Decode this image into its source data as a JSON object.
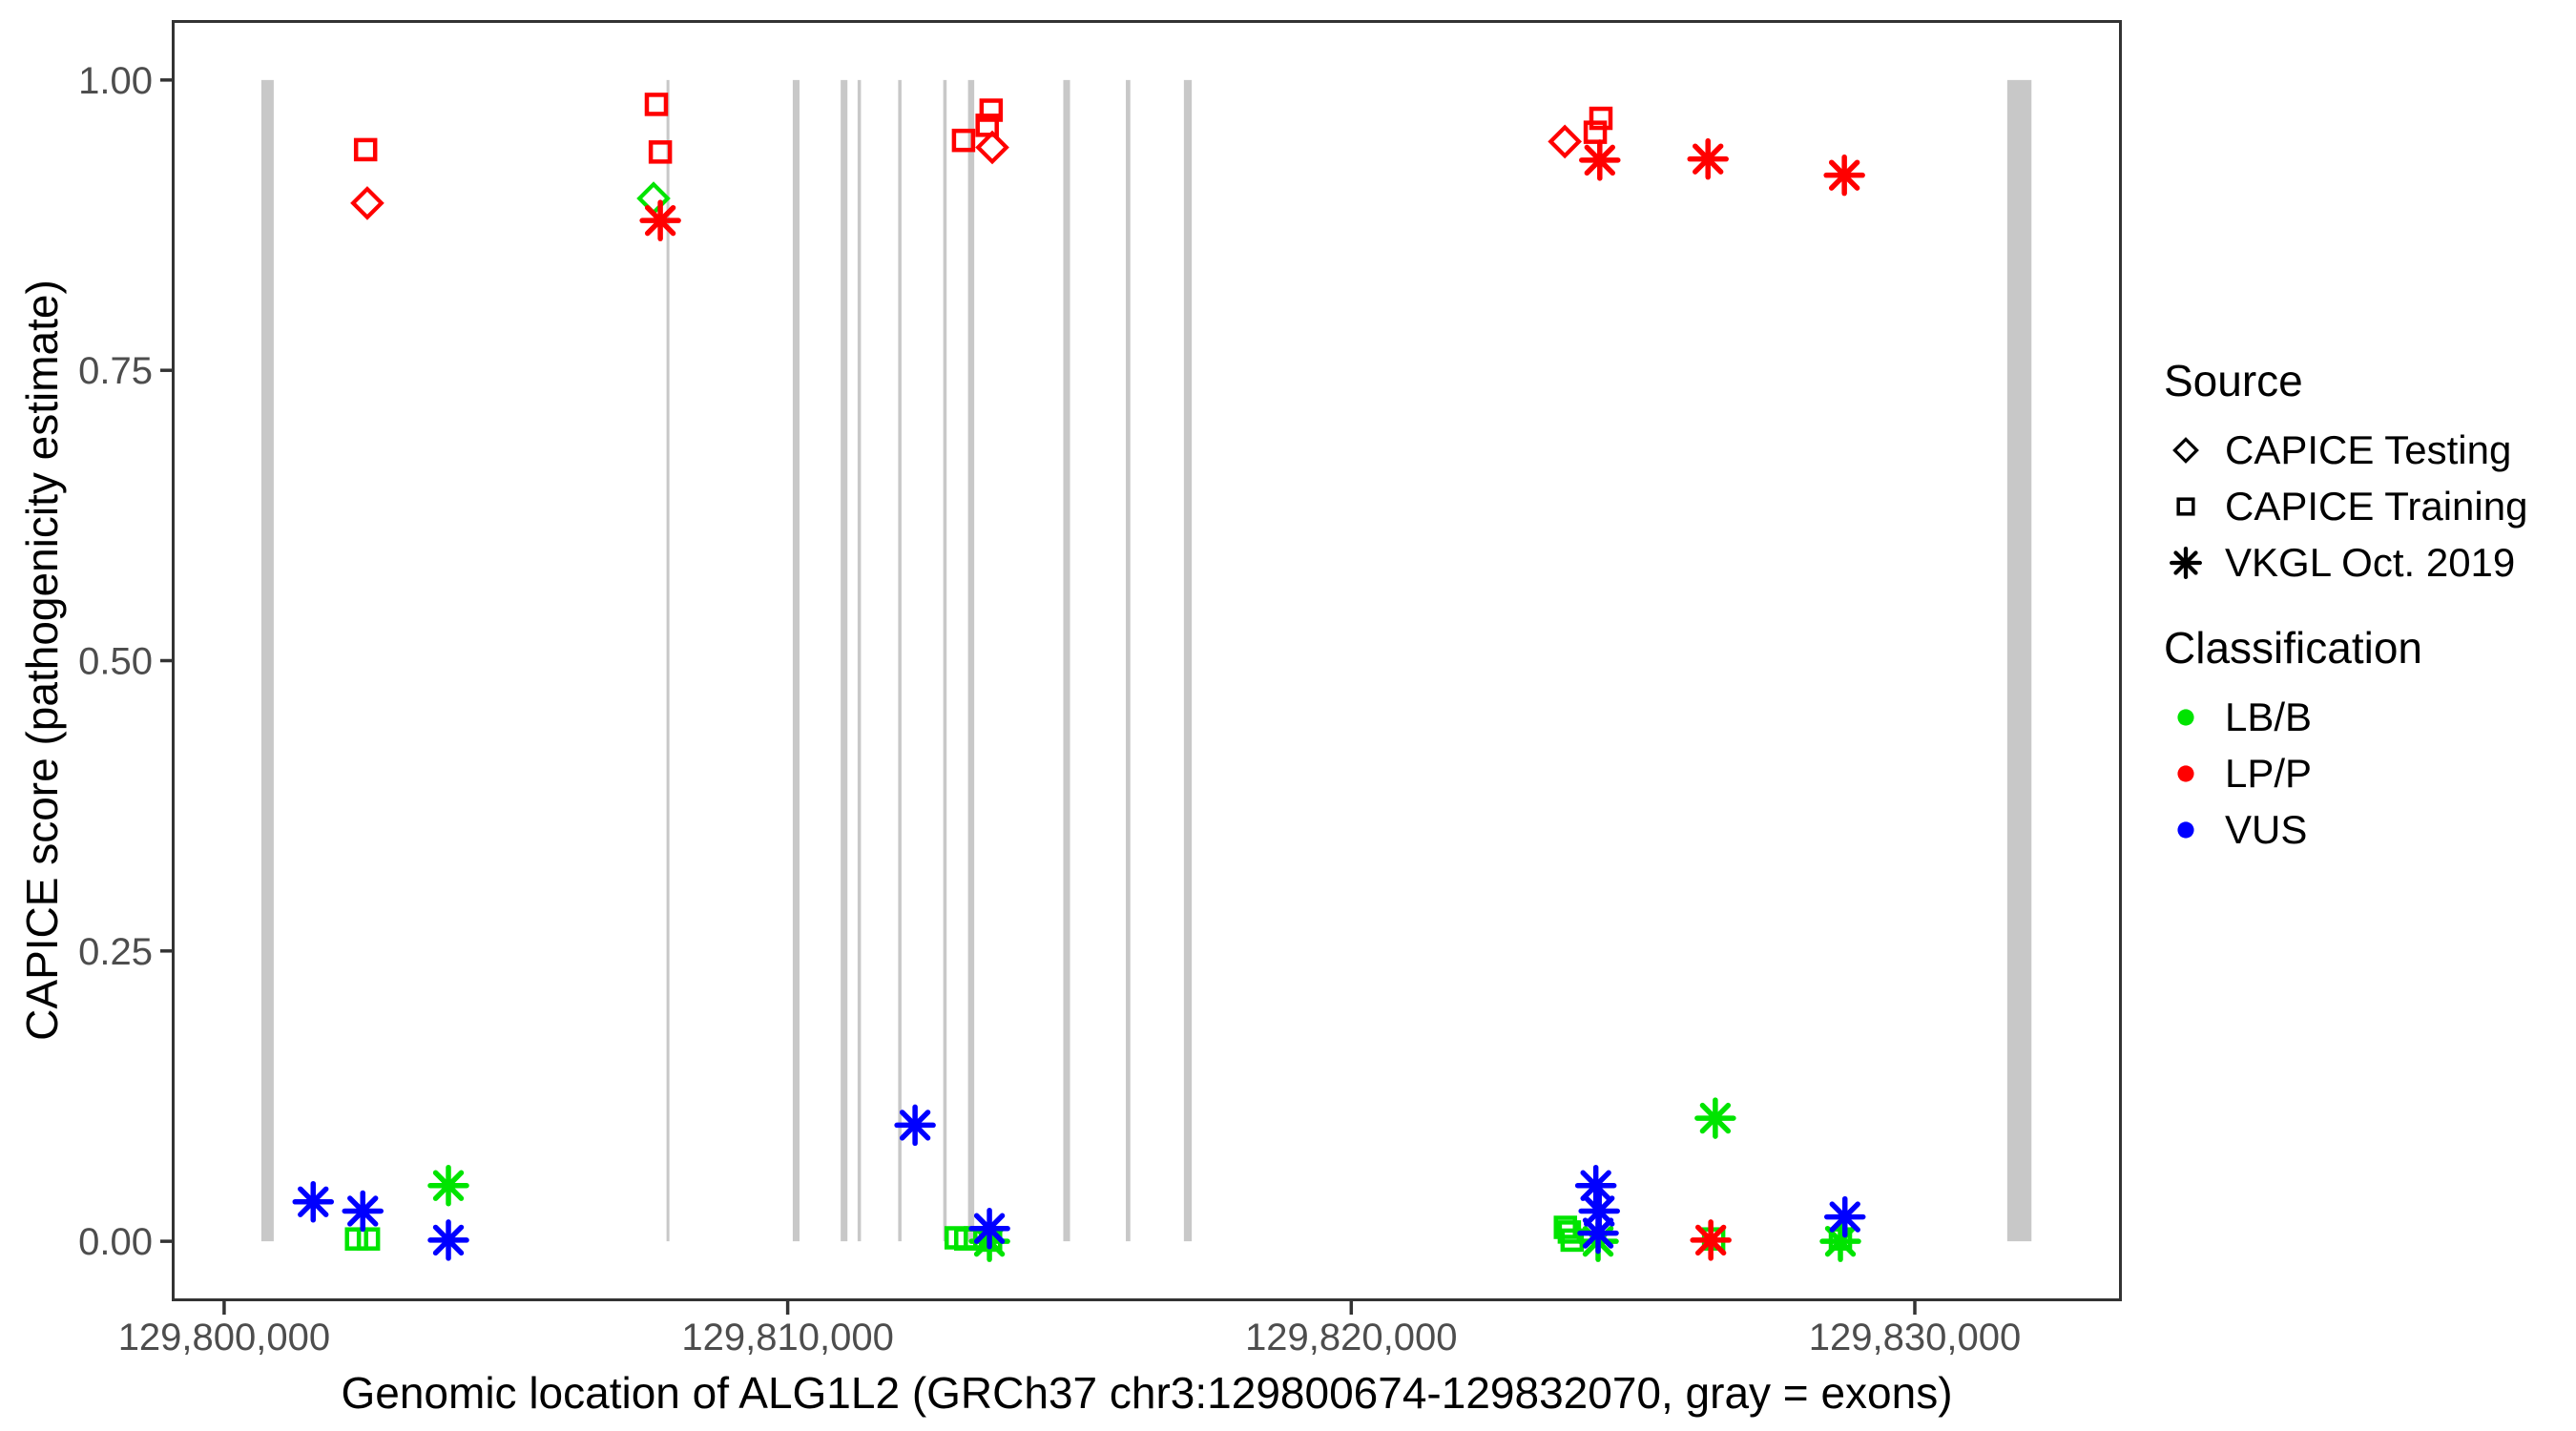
{
  "figure": {
    "x_axis_title": "Genomic location of ALG1L2 (GRCh37 chr3:129800674-129832070, gray = exons)",
    "y_axis_title": "CAPICE score (pathogenicity estimate)"
  },
  "legend": {
    "source": {
      "title": "Source",
      "items": [
        {
          "label": "CAPICE Testing",
          "symbol": "diamond",
          "color": "#000000"
        },
        {
          "label": "CAPICE Training",
          "symbol": "square",
          "color": "#000000"
        },
        {
          "label": "VKGL Oct. 2019",
          "symbol": "asterisk",
          "color": "#000000"
        }
      ]
    },
    "classification": {
      "title": "Classification",
      "items": [
        {
          "label": "LB/B",
          "symbol": "dot",
          "color": "#00e400"
        },
        {
          "label": "LP/P",
          "symbol": "dot",
          "color": "#ff0000"
        },
        {
          "label": "VUS",
          "symbol": "dot",
          "color": "#0000ff"
        }
      ]
    }
  },
  "colors": {
    "lbb": "#00e400",
    "lpp": "#ff0000",
    "vus": "#0000ff",
    "exon_gray": "#c8c8c8",
    "tick_text": "#4d4d4d",
    "axis_line": "#333333"
  },
  "chart_data": {
    "type": "scatter",
    "title": "",
    "xlabel": "Genomic location of ALG1L2 (GRCh37 chr3:129800674-129832070, gray = exons)",
    "ylabel": "CAPICE score (pathogenicity estimate)",
    "x_range_bp": [
      129799104,
      129833640
    ],
    "y_range": [
      -0.05,
      1.05
    ],
    "grid": false,
    "legend_position": "right",
    "x_ticks": [
      {
        "value": 129800000,
        "label": "129,800,000"
      },
      {
        "value": 129810000,
        "label": "129,810,000"
      },
      {
        "value": 129820000,
        "label": "129,820,000"
      },
      {
        "value": 129830000,
        "label": "129,830,000"
      }
    ],
    "y_ticks": [
      {
        "value": 0.0,
        "label": "0.00"
      },
      {
        "value": 0.25,
        "label": "0.25"
      },
      {
        "value": 0.5,
        "label": "0.50"
      },
      {
        "value": 0.75,
        "label": "0.75"
      },
      {
        "value": 1.0,
        "label": "1.00"
      }
    ],
    "exons_bp": [
      [
        129800660,
        129800880
      ],
      [
        129807850,
        129807900
      ],
      [
        129810090,
        129810210
      ],
      [
        129810940,
        129811060
      ],
      [
        129811240,
        129811300
      ],
      [
        129811960,
        129812020
      ],
      [
        129812760,
        129812820
      ],
      [
        129813200,
        129813310
      ],
      [
        129814890,
        129815010
      ],
      [
        129816000,
        129816080
      ],
      [
        129817030,
        129817170
      ],
      [
        129831640,
        129832070
      ]
    ],
    "series": [
      {
        "source": "CAPICE Testing",
        "classification": "LP/P",
        "symbol": "diamond",
        "color": "#ff0000",
        "points": [
          [
            129802540,
            0.894
          ],
          [
            129813630,
            0.942
          ],
          [
            129823790,
            0.947
          ]
        ]
      },
      {
        "source": "CAPICE Testing",
        "classification": "LB/B",
        "symbol": "diamond",
        "color": "#00e400",
        "points": [
          [
            129807620,
            0.898
          ]
        ]
      },
      {
        "source": "CAPICE Training",
        "classification": "LP/P",
        "symbol": "square",
        "color": "#ff0000",
        "points": [
          [
            129802510,
            0.94
          ],
          [
            129807670,
            0.979
          ],
          [
            129807740,
            0.938
          ],
          [
            129813120,
            0.948
          ],
          [
            129813540,
            0.961
          ],
          [
            129813610,
            0.974
          ],
          [
            129824330,
            0.955
          ],
          [
            129824430,
            0.967
          ]
        ]
      },
      {
        "source": "CAPICE Training",
        "classification": "LB/B",
        "symbol": "square",
        "color": "#00e400",
        "points": [
          [
            129802350,
            0.002
          ],
          [
            129802560,
            0.002
          ],
          [
            129812990,
            0.003
          ],
          [
            129813160,
            0.002
          ],
          [
            129813330,
            0.003
          ],
          [
            129813600,
            0.001
          ],
          [
            129823800,
            0.012
          ],
          [
            129823870,
            0.008
          ],
          [
            129823920,
            0.001
          ],
          [
            129826430,
            0.002
          ],
          [
            129828680,
            0.002
          ]
        ]
      },
      {
        "source": "VKGL Oct. 2019",
        "classification": "LB/B",
        "symbol": "asterisk",
        "color": "#00e400",
        "points": [
          [
            129803980,
            0.048
          ],
          [
            129813580,
            0.0
          ],
          [
            129824380,
            0.0
          ],
          [
            129826460,
            0.106
          ],
          [
            129828680,
            0.0
          ]
        ]
      },
      {
        "source": "VKGL Oct. 2019",
        "classification": "LP/P",
        "symbol": "asterisk",
        "color": "#ff0000",
        "points": [
          [
            129807740,
            0.879
          ],
          [
            129824410,
            0.931
          ],
          [
            129826330,
            0.932
          ],
          [
            129828750,
            0.918
          ],
          [
            129826380,
            0.001
          ]
        ]
      },
      {
        "source": "VKGL Oct. 2019",
        "classification": "VUS",
        "symbol": "asterisk",
        "color": "#0000ff",
        "points": [
          [
            129801580,
            0.034
          ],
          [
            129802460,
            0.026
          ],
          [
            129803980,
            0.001
          ],
          [
            129812260,
            0.1
          ],
          [
            129813580,
            0.011
          ],
          [
            129824340,
            0.048
          ],
          [
            129824400,
            0.026
          ],
          [
            129824380,
            0.007
          ],
          [
            129828760,
            0.021
          ]
        ]
      }
    ]
  }
}
